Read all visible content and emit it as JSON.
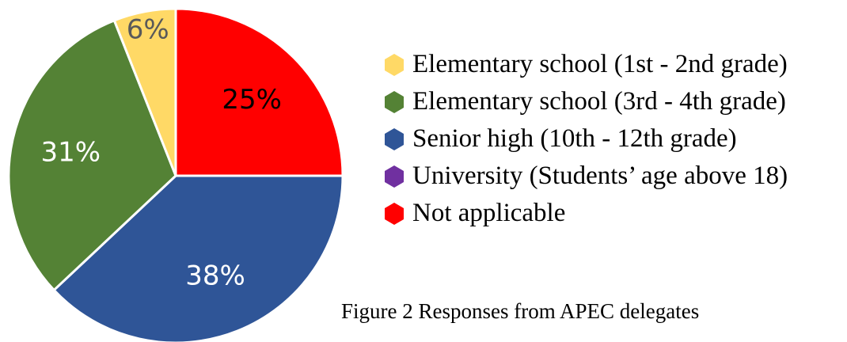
{
  "chart_data": {
    "type": "pie",
    "slices": [
      {
        "label": "Not applicable",
        "value": 25,
        "display": "25%",
        "color": "#ff0000",
        "label_color": "#000000"
      },
      {
        "label": "Senior high (10th - 12th grade)",
        "value": 38,
        "display": "38%",
        "color": "#2f5597",
        "label_color": "#ffffff"
      },
      {
        "label": "Elementary school (3rd - 4th grade)",
        "value": 31,
        "display": "31%",
        "color": "#548235",
        "label_color": "#ffffff"
      },
      {
        "label": "Elementary school (1st - 2nd grade)",
        "value": 6,
        "display": "6%",
        "color": "#ffd966",
        "label_color": "#595959"
      }
    ],
    "legend": [
      {
        "label": "Elementary school (1st - 2nd grade)",
        "color": "#ffd966"
      },
      {
        "label": "Elementary school (3rd - 4th grade)",
        "color": "#548235"
      },
      {
        "label": "Senior high (10th - 12th grade)",
        "color": "#2f5597"
      },
      {
        "label": "University (Students’ age above 18)",
        "color": "#7030a0"
      },
      {
        "label": "Not applicable",
        "color": "#ff0000"
      }
    ],
    "legend_position": "right",
    "start_angle": "12 o'clock, clockwise"
  },
  "caption": "Figure 2 Responses from APEC delegates"
}
